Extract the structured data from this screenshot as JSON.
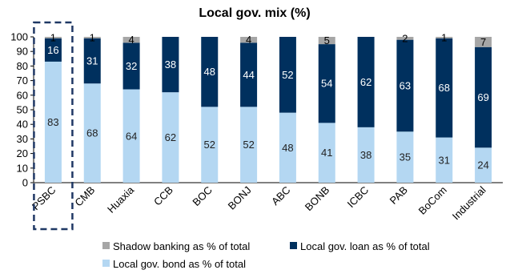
{
  "chart_data": {
    "type": "bar",
    "stacked": true,
    "title": "Local gov. mix (%)",
    "categories": [
      "PSBC",
      "CMB",
      "Huaxia",
      "CCB",
      "BOC",
      "BONJ",
      "ABC",
      "BONB",
      "ICBC",
      "PAB",
      "BoCom",
      "Industrial"
    ],
    "highlighted_category": "PSBC",
    "ylim": [
      0,
      100
    ],
    "yticks": [
      0,
      10,
      20,
      30,
      40,
      50,
      60,
      70,
      80,
      90,
      100
    ],
    "grid": false,
    "legend_position": "bottom",
    "series": [
      {
        "name": "Local gov. bond as % of total",
        "color": "#b4d7f2",
        "label_color": "#222222",
        "values": [
          83,
          68,
          64,
          62,
          52,
          52,
          48,
          41,
          38,
          35,
          31,
          24
        ]
      },
      {
        "name": "Local gov. loan as % of total",
        "color": "#00305e",
        "label_color": "#ffffff",
        "values": [
          16,
          31,
          32,
          38,
          48,
          44,
          52,
          54,
          62,
          63,
          68,
          69
        ]
      },
      {
        "name": "Shadow banking as % of total",
        "color": "#a6a6a6",
        "label_color": "#000000",
        "values": [
          1,
          1,
          4,
          null,
          null,
          4,
          null,
          5,
          null,
          2,
          1,
          7
        ]
      }
    ]
  }
}
